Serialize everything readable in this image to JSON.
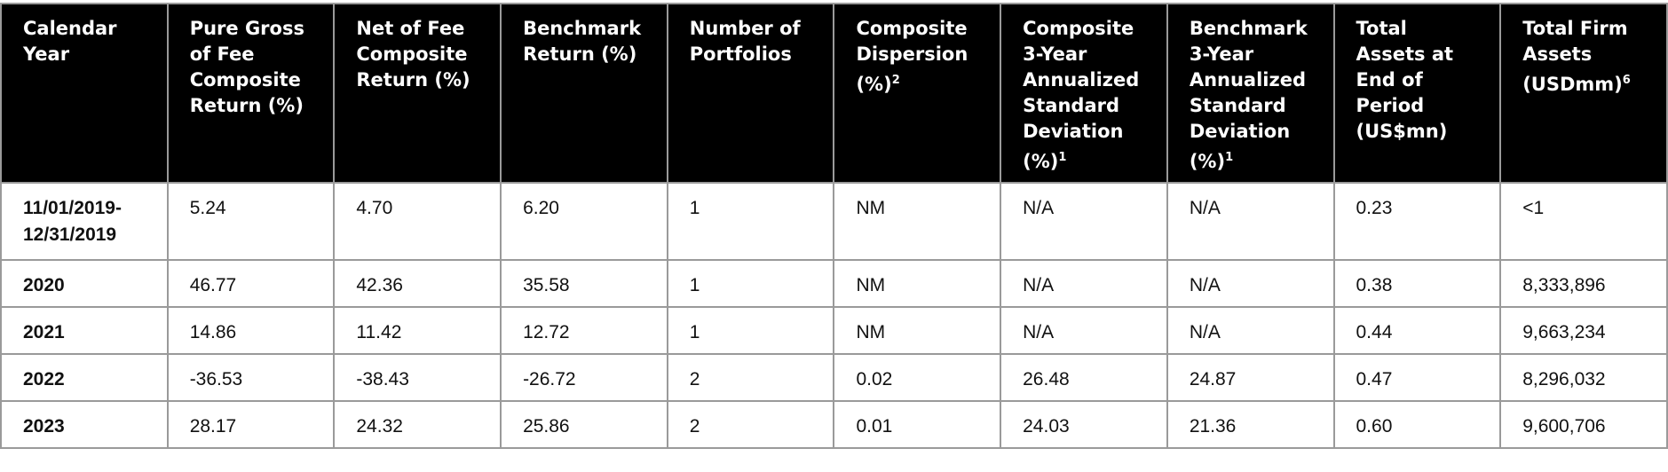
{
  "table": {
    "header": [
      {
        "text": "Calendar Year"
      },
      {
        "text": "Pure Gross of Fee Composite Return (%)"
      },
      {
        "text": "Net of Fee Composite Return (%)"
      },
      {
        "text": "Benchmark Return (%)"
      },
      {
        "text": "Number of Portfolios"
      },
      {
        "text": "Composite Dispersion (%)",
        "sup": "2"
      },
      {
        "text": "Composite 3-Year Annualized Standard Deviation (%)",
        "sup": "1"
      },
      {
        "text": "Benchmark 3-Year Annualized Standard Deviation (%)",
        "sup": "1"
      },
      {
        "text": "Total Assets at End of Period (US$mn)"
      },
      {
        "text": "Total Firm Assets (USDmm)",
        "sup": "6"
      }
    ],
    "rows": [
      [
        "11/01/2019-12/31/2019",
        "5.24",
        "4.70",
        "6.20",
        "1",
        "NM",
        "N/A",
        "N/A",
        "0.23",
        "<1"
      ],
      [
        "2020",
        "46.77",
        "42.36",
        "35.58",
        "1",
        "NM",
        "N/A",
        "N/A",
        "0.38",
        "8,333,896"
      ],
      [
        "2021",
        "14.86",
        "11.42",
        "12.72",
        "1",
        "NM",
        "N/A",
        "N/A",
        "0.44",
        "9,663,234"
      ],
      [
        "2022",
        "-36.53",
        "-38.43",
        "-26.72",
        "2",
        "0.02",
        "26.48",
        "24.87",
        "0.47",
        "8,296,032"
      ],
      [
        "2023",
        "28.17",
        "24.32",
        "25.86",
        "2",
        "0.01",
        "24.03",
        "21.36",
        "0.60",
        "9,600,706"
      ]
    ]
  }
}
